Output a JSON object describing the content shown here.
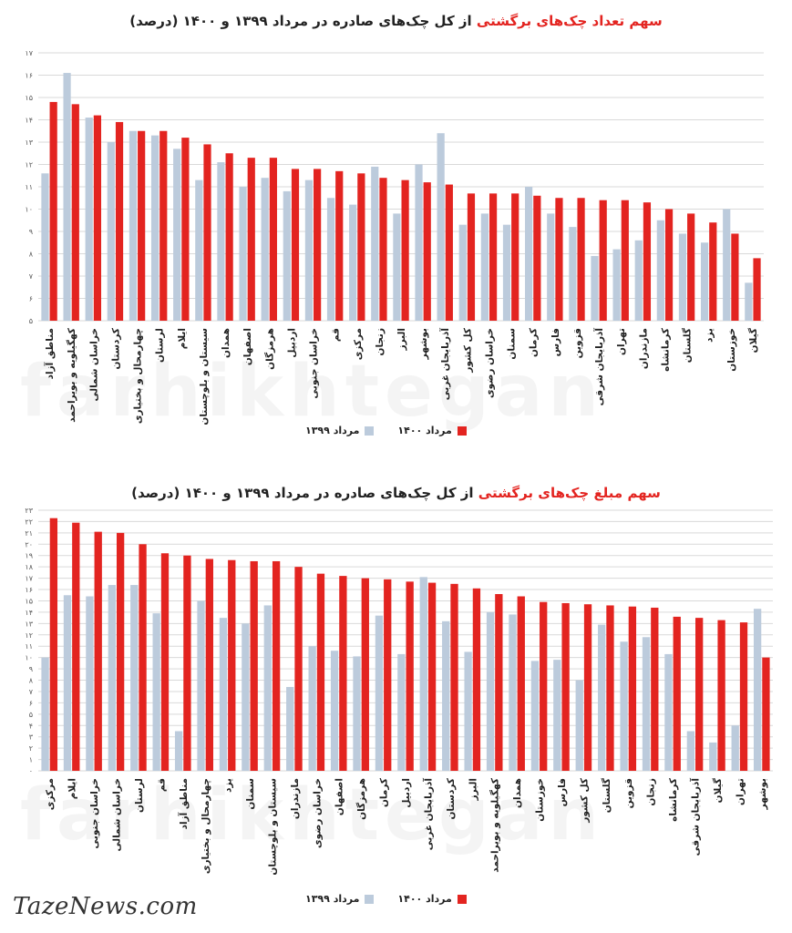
{
  "colors": {
    "series_1400": "#e32420",
    "series_1399": "#bccbdc",
    "grid": "#d9d9d9",
    "axis_text": "#555555"
  },
  "footer": {
    "brand": "TazeNews.com"
  },
  "watermark": {
    "text": "farhikhtegan"
  },
  "chart_data": [
    {
      "type": "bar",
      "title_highlight": "سهم تعداد چک‌های برگشتی",
      "title_rest": " از کل چک‌های صادره در مرداد ۱۳۹۹ و ۱۴۰۰ (درصد)",
      "ylim": [
        5,
        17
      ],
      "yticks": [
        "۵",
        "۶",
        "۷",
        "۸",
        "۹",
        "۱۰",
        "۱۱",
        "۱۲",
        "۱۳",
        "۱۴",
        "۱۵",
        "۱۶",
        "۱۷"
      ],
      "legend": [
        "مرداد ۱۴۰۰",
        "مرداد ۱۳۹۹"
      ],
      "categories": [
        "مناطق آزاد",
        "کهگیلویه و بویراحمد",
        "خراسان شمالی",
        "کردستان",
        "چهارمحال و بختیاری",
        "لرستان",
        "ایلام",
        "سیستان و بلوچستان",
        "همدان",
        "اصفهان",
        "هرمزگان",
        "اردبیل",
        "خراسان جنوبی",
        "قم",
        "مرکزی",
        "زنجان",
        "البرز",
        "بوشهر",
        "آذربایجان غربی",
        "کل کشور",
        "خراسان رضوی",
        "سمنان",
        "کرمان",
        "فارس",
        "قزوین",
        "آذربایجان شرقی",
        "تهران",
        "مازندران",
        "کرمانشاه",
        "گلستان",
        "یزد",
        "خوزستان",
        "گیلان"
      ],
      "series": [
        {
          "name": "مرداد ۱۴۰۰",
          "values": [
            14.8,
            14.7,
            14.2,
            13.9,
            13.5,
            13.5,
            13.2,
            12.9,
            12.5,
            12.3,
            12.3,
            11.8,
            11.8,
            11.7,
            11.6,
            11.4,
            11.3,
            11.2,
            11.1,
            10.7,
            10.7,
            10.7,
            10.6,
            10.5,
            10.5,
            10.4,
            10.4,
            10.3,
            10.0,
            9.8,
            9.4,
            8.9,
            7.8
          ]
        },
        {
          "name": "مرداد ۱۳۹۹",
          "values": [
            11.6,
            16.1,
            14.1,
            13.0,
            13.5,
            13.3,
            12.7,
            11.3,
            12.1,
            11.0,
            11.4,
            10.8,
            11.3,
            10.5,
            10.2,
            11.9,
            9.8,
            12.0,
            13.4,
            9.3,
            9.8,
            9.3,
            11.0,
            9.8,
            9.2,
            7.9,
            8.2,
            8.6,
            9.5,
            8.9,
            8.5,
            10.0,
            6.7
          ]
        }
      ]
    },
    {
      "type": "bar",
      "title_highlight": "سهم مبلغ چک‌های برگشتی",
      "title_rest": " از کل چک‌های صادره در مرداد ۱۳۹۹ و ۱۴۰۰ (درصد)",
      "ylim": [
        0,
        23
      ],
      "yticks": [
        "۰",
        "۱",
        "۲",
        "۳",
        "۴",
        "۵",
        "۶",
        "۷",
        "۸",
        "۹",
        "۱۰",
        "۱۱",
        "۱۲",
        "۱۳",
        "۱۴",
        "۱۵",
        "۱۶",
        "۱۷",
        "۱۸",
        "۱۹",
        "۲۰",
        "۲۱",
        "۲۲",
        "۲۳"
      ],
      "legend": [
        "مرداد ۱۴۰۰",
        "مرداد ۱۳۹۹"
      ],
      "categories": [
        "مرکزی",
        "ایلام",
        "خراسان جنوبی",
        "خراسان شمالی",
        "لرستان",
        "قم",
        "مناطق آزاد",
        "چهارمحال و بختیاری",
        "یزد",
        "سمنان",
        "سیستان و بلوچستان",
        "مازندران",
        "خراسان رضوی",
        "اصفهان",
        "هرمزگان",
        "کرمان",
        "اردبیل",
        "آذربایجان غربی",
        "کردستان",
        "البرز",
        "کهگیلویه و بویراحمد",
        "همدان",
        "خوزستان",
        "فارس",
        "کل کشور",
        "گلستان",
        "قزوین",
        "زنجان",
        "کرمانشاه",
        "آذربایجان شرقی",
        "گیلان",
        "تهران",
        "بوشهر"
      ],
      "series": [
        {
          "name": "مرداد ۱۴۰۰",
          "values": [
            22.3,
            21.9,
            21.1,
            21.0,
            20.0,
            19.2,
            19.0,
            18.7,
            18.6,
            18.5,
            18.5,
            18.0,
            17.4,
            17.2,
            17.0,
            16.9,
            16.7,
            16.6,
            16.5,
            16.1,
            15.6,
            15.4,
            14.9,
            14.8,
            14.7,
            14.6,
            14.5,
            14.4,
            13.6,
            13.5,
            13.3,
            13.1,
            10.0
          ]
        },
        {
          "name": "مرداد ۱۳۹۹",
          "values": [
            10.0,
            15.5,
            15.4,
            16.4,
            16.4,
            13.9,
            3.5,
            15.0,
            13.5,
            13.0,
            14.6,
            7.4,
            11.0,
            10.6,
            10.1,
            13.7,
            10.3,
            17.1,
            13.2,
            10.5,
            14.0,
            13.8,
            9.7,
            9.8,
            8.0,
            12.9,
            11.4,
            11.8,
            10.3,
            3.5,
            2.5,
            4.0,
            14.3
          ]
        }
      ]
    }
  ]
}
